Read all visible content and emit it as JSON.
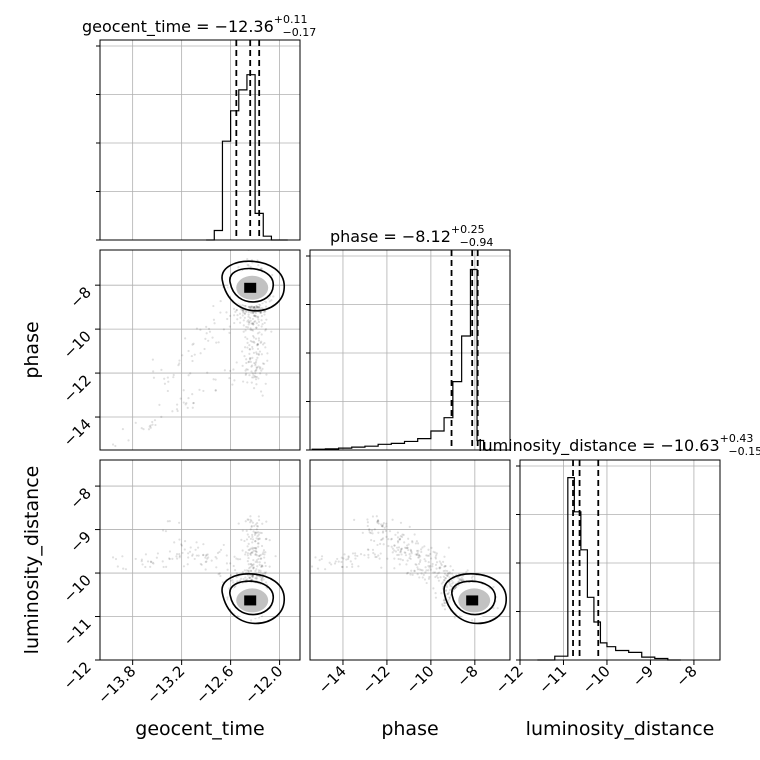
{
  "chart_data": {
    "type": "corner",
    "parameters": [
      "geocent_time",
      "phase",
      "luminosity_distance"
    ],
    "axis_labels": {
      "geocent_time": "geocent_time",
      "phase": "phase",
      "luminosity_distance": "luminosity_distance"
    },
    "ranges": {
      "geocent_time": [
        -14.2,
        -11.75
      ],
      "phase": [
        -15.5,
        -6.4
      ],
      "luminosity_distance": [
        -12.0,
        -7.4
      ]
    },
    "ticks": {
      "geocent_time": [
        -13.8,
        -13.2,
        -12.6,
        -12.0
      ],
      "phase": [
        -14,
        -12,
        -10,
        -8
      ],
      "luminosity_distance": [
        -12,
        -11,
        -10,
        -9,
        -8
      ]
    },
    "tick_labels": {
      "geocent_time": [
        "−13.8",
        "−13.2",
        "−12.6",
        "−12.0"
      ],
      "phase": [
        "−14",
        "−12",
        "−10",
        "−8"
      ],
      "luminosity_distance": [
        "−12",
        "−11",
        "−10",
        "−9",
        "−8"
      ]
    },
    "titles": [
      {
        "param": "geocent_time",
        "prefix": "geocent_time = −12.36",
        "plus": "+0.11",
        "minus": "−0.17"
      },
      {
        "param": "phase",
        "prefix": "phase = −8.12",
        "plus": "+0.25",
        "minus": "−0.94"
      },
      {
        "param": "luminosity_distance",
        "prefix": "luminosity_distance = −10.63",
        "plus": "+0.43",
        "minus": "−0.15"
      }
    ],
    "quantiles": {
      "geocent_time": [
        -12.53,
        -12.36,
        -12.25
      ],
      "phase": [
        -9.06,
        -8.12,
        -7.87
      ],
      "luminosity_distance": [
        -10.78,
        -10.63,
        -10.2
      ]
    },
    "histograms": {
      "geocent_time": {
        "edges": [
          -12.9,
          -12.8,
          -12.7,
          -12.6,
          -12.5,
          -12.4,
          -12.3,
          -12.2,
          -12.1,
          -12.0,
          -11.9
        ],
        "counts": [
          0,
          0.05,
          0.52,
          0.68,
          0.79,
          0.87,
          0.14,
          0.02,
          0,
          0
        ]
      },
      "phase": {
        "edges": [
          -15.4,
          -14.8,
          -14.2,
          -13.6,
          -13.0,
          -12.4,
          -11.8,
          -11.2,
          -10.6,
          -10.0,
          -9.4,
          -9.0,
          -8.6,
          -8.2,
          -7.9,
          -7.6,
          -7.2
        ],
        "counts": [
          0.004,
          0.006,
          0.01,
          0.015,
          0.02,
          0.03,
          0.035,
          0.045,
          0.06,
          0.1,
          0.17,
          0.36,
          0.6,
          0.95,
          0.05,
          0.0
        ]
      },
      "luminosity_distance": {
        "edges": [
          -11.6,
          -11.2,
          -10.9,
          -10.75,
          -10.6,
          -10.45,
          -10.3,
          -10.15,
          -10.0,
          -9.8,
          -9.5,
          -9.2,
          -8.9,
          -8.6,
          -8.3
        ],
        "counts": [
          0.0,
          0.02,
          0.96,
          0.78,
          0.58,
          0.33,
          0.2,
          0.09,
          0.07,
          0.05,
          0.04,
          0.015,
          0.008,
          0.0
        ]
      }
    },
    "grid": true,
    "histogram_ylim": [
      0,
      1.0
    ],
    "colors": {
      "ink": "#000000",
      "grid": "#b0b0b0",
      "frame": "#000000",
      "points": "#000000"
    }
  }
}
